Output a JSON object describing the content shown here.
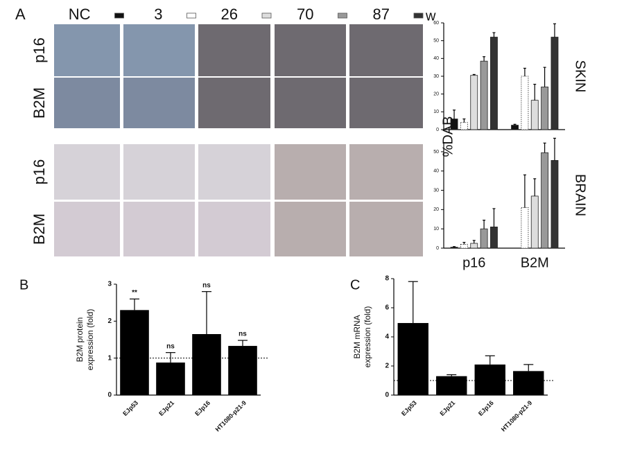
{
  "panel_a": {
    "label": "A",
    "row_labels": [
      "p16",
      "B2M",
      "p16",
      "B2M"
    ]
  },
  "chart_data": [
    {
      "type": "bar",
      "title": "SKIN",
      "ylabel": "%DAB",
      "legend_title": "w",
      "categories": [
        null,
        null
      ],
      "ylim": [
        0,
        60
      ],
      "yticks": [
        0,
        10,
        20,
        30,
        40,
        50,
        60
      ],
      "series": [
        {
          "name": "NC",
          "color": "#111111",
          "values": [
            6,
            2.5
          ],
          "errors": [
            5,
            0.5
          ]
        },
        {
          "name": "3",
          "color": "#ffffff",
          "values": [
            4,
            30
          ],
          "errors": [
            2,
            4.5
          ]
        },
        {
          "name": "26",
          "color": "#dddddd",
          "values": [
            30.5,
            16.5
          ],
          "errors": [
            0.5,
            9
          ]
        },
        {
          "name": "70",
          "color": "#999999",
          "values": [
            38.5,
            24
          ],
          "errors": [
            2.5,
            11
          ]
        },
        {
          "name": "87",
          "color": "#333333",
          "values": [
            52,
            52
          ],
          "errors": [
            2.5,
            7.5
          ]
        }
      ]
    },
    {
      "type": "bar",
      "title": "BRAIN",
      "categories": [
        "p16",
        "B2M"
      ],
      "ylim": [
        0,
        55
      ],
      "yticks": [
        0,
        10,
        20,
        30,
        40,
        50
      ],
      "series": [
        {
          "color": "#111111",
          "values": [
            0.5,
            null
          ],
          "errors": [
            0.3,
            null
          ]
        },
        {
          "color": "#ffffff",
          "values": [
            2,
            21
          ],
          "errors": [
            1,
            17
          ]
        },
        {
          "color": "#dddddd",
          "values": [
            2.5,
            27
          ],
          "errors": [
            1.5,
            9
          ]
        },
        {
          "color": "#999999",
          "values": [
            10,
            49.5
          ],
          "errors": [
            4.5,
            5
          ]
        },
        {
          "color": "#333333",
          "values": [
            11,
            45.5
          ],
          "errors": [
            9.5,
            11.5
          ]
        }
      ]
    },
    {
      "type": "bar",
      "panel": "B",
      "ylabel": [
        "B2M protein",
        "expression (fold)"
      ],
      "categories": [
        "EJp53",
        "EJp21",
        "EJp16",
        "HT1080-p21-9"
      ],
      "values": [
        2.3,
        0.88,
        1.65,
        1.33
      ],
      "errors": [
        0.3,
        0.27,
        1.15,
        0.15
      ],
      "annotations": [
        "**",
        "ns",
        "ns",
        "ns"
      ],
      "color": "#000000",
      "ylim": [
        0,
        3
      ],
      "yticks": [
        0,
        1,
        2,
        3
      ],
      "reference_line": 1
    },
    {
      "type": "bar",
      "panel": "C",
      "ylabel": [
        "B2M mRNA",
        "expression (fold)"
      ],
      "categories": [
        "EJp53",
        "EJp21",
        "EJp16",
        "HT1080-p21-9"
      ],
      "values": [
        4.95,
        1.3,
        2.1,
        1.65
      ],
      "errors": [
        2.85,
        0.1,
        0.6,
        0.45
      ],
      "color": "#000000",
      "ylim": [
        0,
        8
      ],
      "yticks": [
        0,
        2,
        4,
        6,
        8
      ],
      "reference_line": 1
    }
  ]
}
